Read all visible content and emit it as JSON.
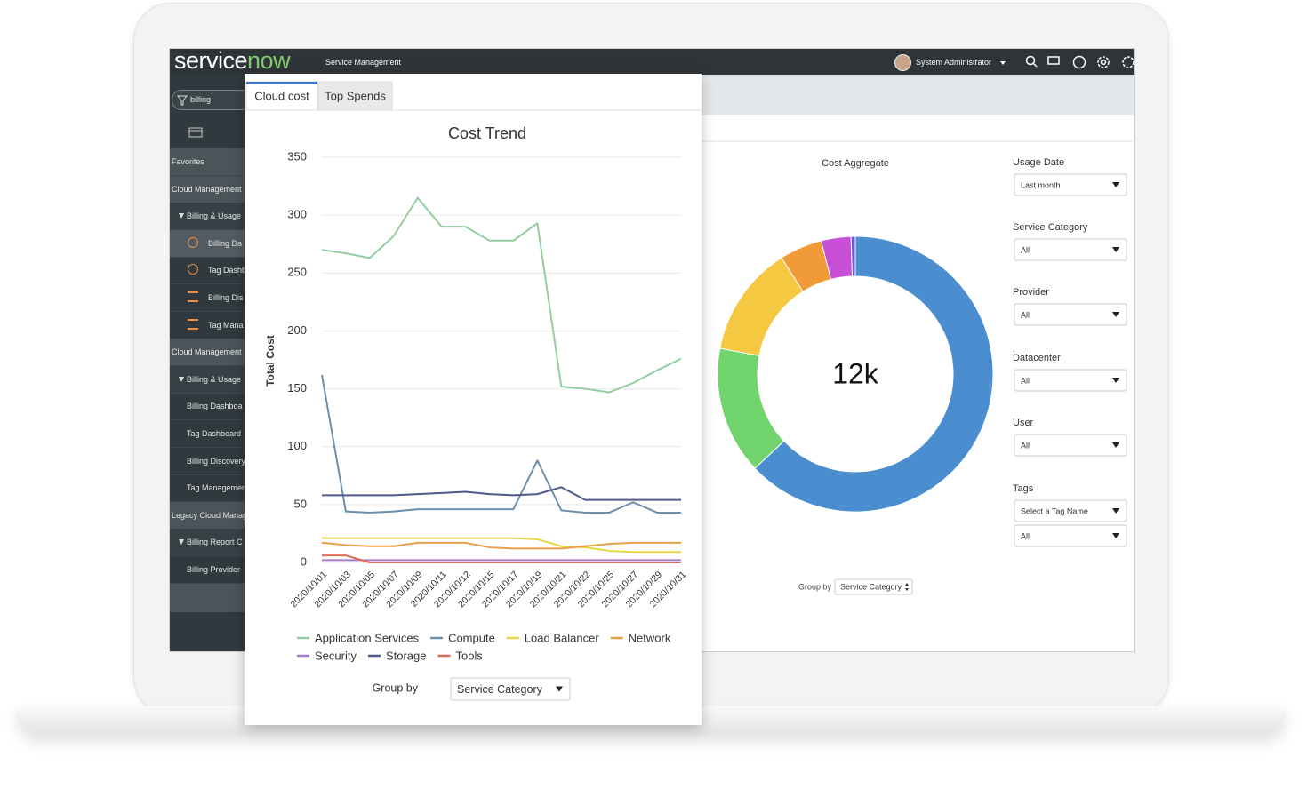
{
  "header": {
    "logo_service": "service",
    "logo_now": "now",
    "app_name": "Service Management",
    "user": "System Administrator"
  },
  "sidebar": {
    "filter": "billing",
    "items": [
      "Favorites",
      "Cloud Management",
      "Billing & Usage",
      "Billing Da",
      "Tag Dashb",
      "Billing Dis",
      "Tag Mana",
      "Cloud Management",
      "Billing & Usage",
      "Billing Dashboa",
      "Tag Dashboard",
      "Billing Discovery",
      "Tag Managemen",
      "Legacy Cloud Manag",
      "Billing Report C",
      "Billing Provider"
    ]
  },
  "tabs": [
    "Cloud cost",
    "Top Spends"
  ],
  "chart_data": [
    {
      "type": "line",
      "title": "Cost Trend",
      "y_label": "Total Cost",
      "categories": [
        "2020/10/01",
        "2020/10/03",
        "2020/10/05",
        "2020/10/07",
        "2020/10/09",
        "2020/10/11",
        "2020/10/12",
        "2020/10/15",
        "2020/10/17",
        "2020/10/19",
        "2020/10/21",
        "2020/10/22",
        "2020/10/25",
        "2020/10/27",
        "2020/10/29",
        "2020/10/31"
      ],
      "series": [
        {
          "name": "Application Services",
          "color": "#93cda0",
          "values": [
            270,
            267,
            263,
            282,
            315,
            290,
            290,
            278,
            278,
            293,
            152,
            150,
            147,
            155,
            166,
            176
          ]
        },
        {
          "name": "Compute",
          "color": "#6b8fad",
          "values": [
            162,
            44,
            43,
            44,
            46,
            46,
            46,
            46,
            46,
            88,
            45,
            43,
            43,
            52,
            43,
            43
          ]
        },
        {
          "name": "Load Balancer",
          "color": "#e3d84c",
          "values": [
            21,
            21,
            21,
            21,
            21,
            21,
            21,
            21,
            21,
            20,
            14,
            13,
            10,
            9,
            9,
            9
          ]
        },
        {
          "name": "Network",
          "color": "#e8a04a",
          "values": [
            17,
            15,
            14,
            14,
            17,
            17,
            17,
            13,
            12,
            12,
            12,
            14,
            16,
            17,
            17,
            17
          ]
        },
        {
          "name": "Security",
          "color": "#a97bcb",
          "values": [
            2,
            2,
            2,
            2,
            2,
            2,
            2,
            2,
            2,
            2,
            2,
            2,
            2,
            2,
            2,
            2
          ]
        },
        {
          "name": "Storage",
          "color": "#4f5a8a",
          "values": [
            58,
            58,
            58,
            58,
            59,
            60,
            61,
            59,
            58,
            59,
            65,
            54,
            54,
            54,
            54,
            54
          ]
        },
        {
          "name": "Tools",
          "color": "#e06a58",
          "values": [
            6,
            6,
            0,
            0,
            0,
            0,
            0,
            0,
            0,
            0,
            0,
            0,
            0,
            0,
            0,
            0
          ]
        }
      ],
      "ylim": [
        0,
        350
      ],
      "yticks": [
        0,
        50,
        100,
        150,
        200,
        250,
        300,
        350
      ],
      "grid": true
    },
    {
      "type": "pie",
      "title": "Cost Aggregate",
      "center_label": "12k",
      "values": [
        63,
        15,
        13,
        5,
        3.5,
        0.5
      ],
      "colors": [
        "#4a8ed0",
        "#72d46c",
        "#f5c842",
        "#f09a3a",
        "#c850d8",
        "#6a5acd"
      ],
      "donut": true
    }
  ],
  "card_group_by": {
    "label": "Group by",
    "value": "Service Category"
  },
  "filters": [
    {
      "label": "Usage Date",
      "values": [
        "Last month"
      ]
    },
    {
      "label": "Service Category",
      "values": [
        "All"
      ]
    },
    {
      "label": "Provider",
      "values": [
        "All"
      ]
    },
    {
      "label": "Datacenter",
      "values": [
        "All"
      ]
    },
    {
      "label": "User",
      "values": [
        "All"
      ]
    },
    {
      "label": "Tags",
      "values": [
        "Select a Tag Name",
        "All"
      ]
    }
  ],
  "aggregate_group_by": {
    "label": "Group by",
    "value": "Service Category"
  }
}
